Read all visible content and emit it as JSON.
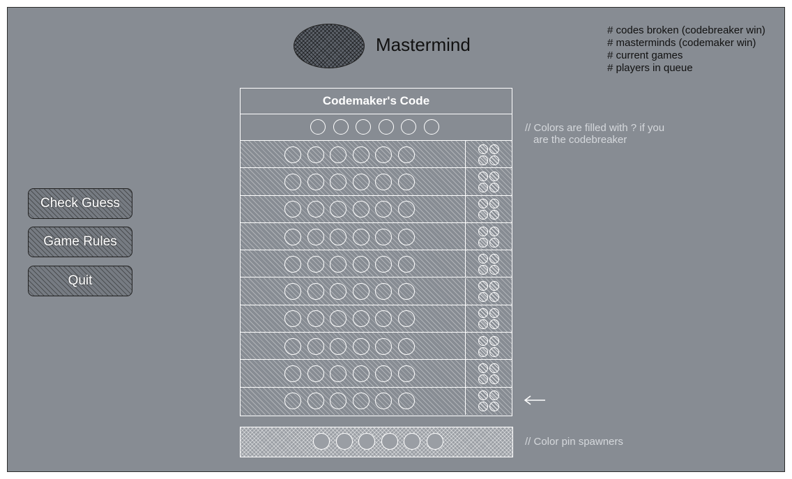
{
  "app": {
    "title": "Mastermind",
    "logo_icon": "mastermind-logo-icon"
  },
  "stats": [
    "# codes broken (codebreaker win)",
    "# masterminds (codemaker win)",
    "# current games",
    "# players in queue"
  ],
  "buttons": {
    "check_guess": "Check Guess",
    "game_rules": "Game Rules",
    "quit": "Quit"
  },
  "board": {
    "header": "Codemaker's Code",
    "code_peg_count": 6,
    "guess_rows": 10,
    "pegs_per_row": 6,
    "feedback_pegs_per_row": 4
  },
  "notes": {
    "code_note_line1": "// Colors are filled with ? if you",
    "code_note_line2": "are the codebreaker",
    "spawner_note": "// Color pin spawners"
  },
  "spawner": {
    "pin_count": 6
  },
  "colors": {
    "background": "#878c93",
    "lines": "#ffffff",
    "annotation_text": "#d5d8dc"
  },
  "icons": {
    "current_row_arrow": "arrow-left-icon"
  }
}
